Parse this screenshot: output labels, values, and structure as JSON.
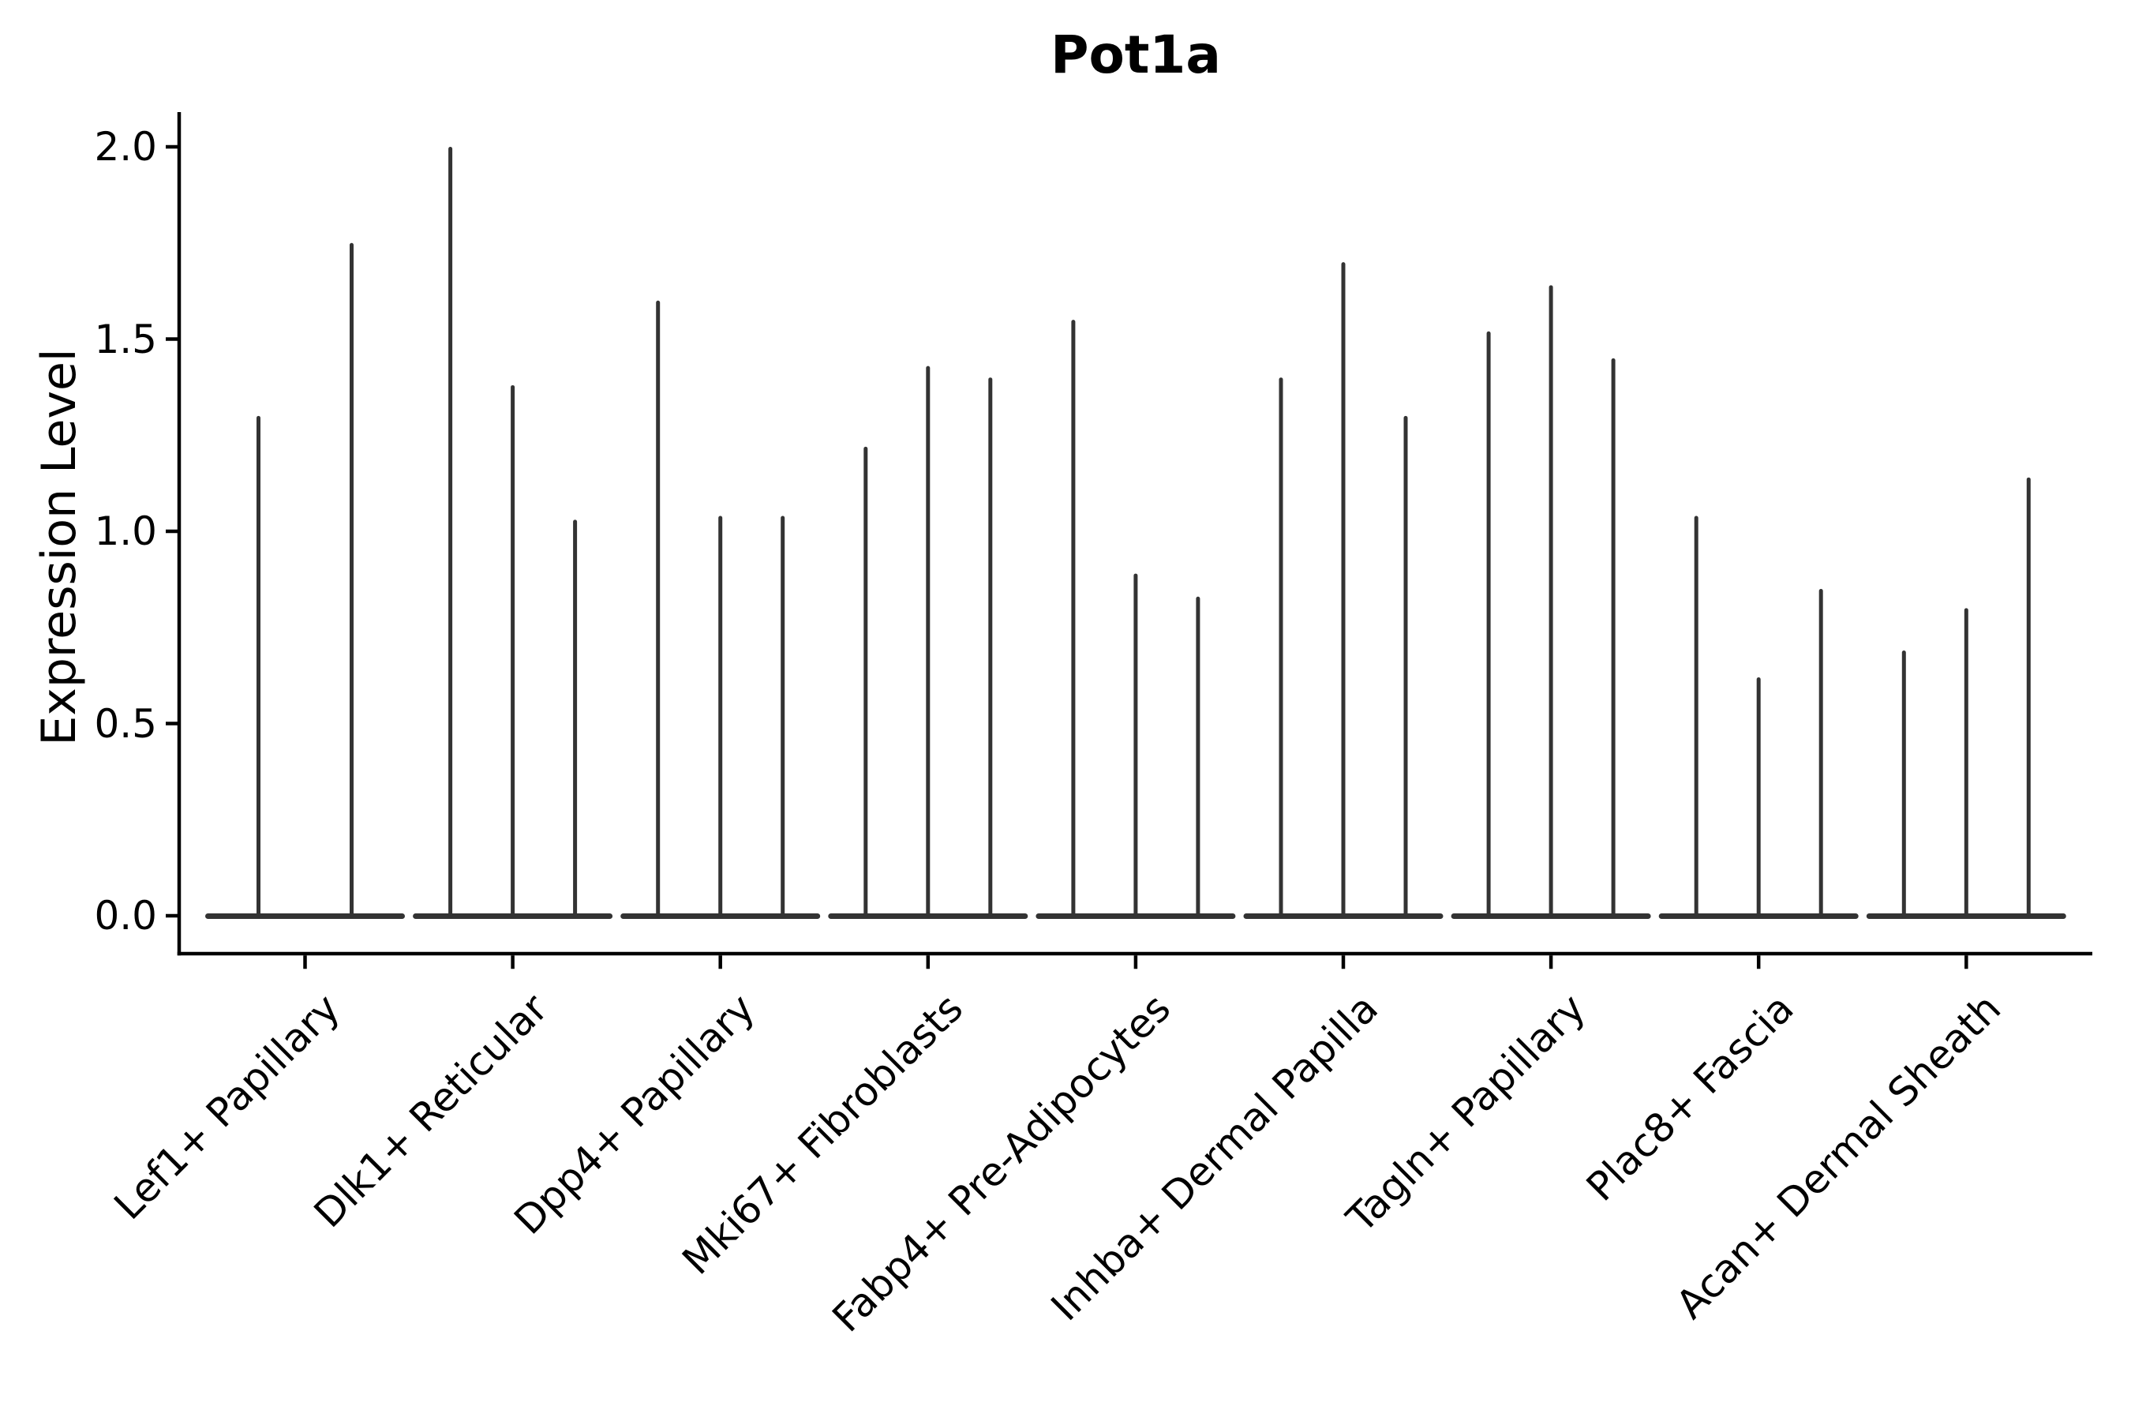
{
  "chart_data": {
    "type": "violin",
    "title": "Pot1a",
    "ylabel": "Expression Level",
    "xlabel": "",
    "legend": "none",
    "grid": false,
    "categories": [
      "Lef1+ Papillary",
      "Dlk1+ Reticular",
      "Dpp4+ Papillary",
      "Mki67+ Fibroblasts",
      "Fabp4+ Pre-Adipocytes",
      "Inhba+ Dermal Papilla",
      "Tagln+ Papillary",
      "Plac8+ Fascia",
      "Acan+ Dermal Sheath"
    ],
    "violin_max_per_category": [
      [
        1.3,
        1.75
      ],
      [
        2.0,
        1.38,
        1.03
      ],
      [
        1.6,
        1.04,
        1.04
      ],
      [
        1.22,
        1.43,
        1.4
      ],
      [
        1.55,
        0.89,
        0.83
      ],
      [
        1.4,
        1.7,
        1.3
      ],
      [
        1.52,
        1.64,
        1.45
      ],
      [
        1.04,
        0.62,
        0.85
      ],
      [
        0.69,
        0.8,
        1.14
      ]
    ],
    "violin_shape": "needle (expression concentrated at 0 with thin spike to max)",
    "y_ticks": [
      {
        "label": "0.0",
        "value": 0.0
      },
      {
        "label": "0.5",
        "value": 0.5
      },
      {
        "label": "1.0",
        "value": 1.0
      },
      {
        "label": "1.5",
        "value": 1.5
      },
      {
        "label": "2.0",
        "value": 2.0
      }
    ],
    "ylim": [
      -0.1,
      2.09
    ],
    "x_tick_rotation_deg": 45,
    "colors": {
      "violin": "#333333",
      "axis": "#000000",
      "text": "#000000",
      "background": "#ffffff"
    }
  }
}
